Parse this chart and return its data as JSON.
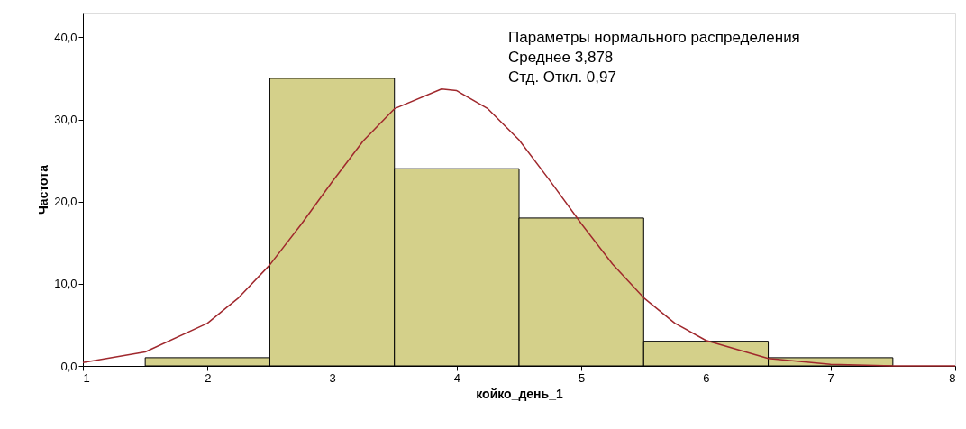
{
  "chart_data": {
    "type": "histogram",
    "xlabel": "койко_день_1",
    "ylabel": "Частота",
    "bins": [
      1.5,
      2.5,
      3.5,
      4.5,
      5.5,
      6.5,
      7.5
    ],
    "values": [
      1,
      35,
      24,
      18,
      3,
      1
    ],
    "color": "#d4d08a",
    "series": [
      {
        "type": "line",
        "color": "#a0282d",
        "x": [
          1,
          1.5,
          2,
          2.25,
          2.5,
          2.75,
          3,
          3.25,
          3.5,
          3.878,
          4,
          4.25,
          4.5,
          4.75,
          5,
          5.25,
          5.5,
          5.75,
          6,
          6.5,
          7,
          7.5,
          8
        ],
        "values": [
          0.4,
          1.7,
          5.2,
          8.3,
          12.3,
          17.2,
          22.4,
          27.4,
          31.3,
          33.7,
          33.5,
          31.3,
          27.5,
          22.5,
          17.3,
          12.4,
          8.3,
          5.2,
          3.1,
          0.9,
          0.2,
          0,
          0
        ]
      }
    ],
    "xlim": [
      1,
      8
    ],
    "xticks": [
      1,
      2,
      3,
      4,
      5,
      6,
      7,
      8
    ],
    "ylim": [
      0,
      43
    ],
    "yticks": [
      {
        "value": 0,
        "label": "0,0"
      },
      {
        "value": 10,
        "label": "10,0"
      },
      {
        "value": 20,
        "label": "20,0"
      },
      {
        "value": 30,
        "label": "30,0"
      },
      {
        "value": 40,
        "label": "40,0"
      }
    ],
    "annotations": [
      "Параметры нормального распределения",
      "Среднее 3,878",
      "Стд. Откл. 0,97"
    ],
    "grid": false,
    "legend": false
  }
}
